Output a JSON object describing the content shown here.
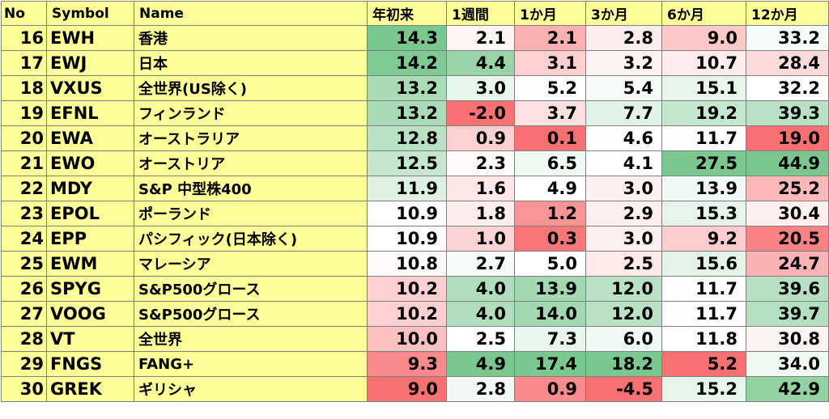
{
  "headers": {
    "no": "No",
    "symbol": "Symbol",
    "name": "Name",
    "ytd": "年初来",
    "w1": "1週間",
    "m1": "1か月",
    "m3": "3か月",
    "m6": "6か月",
    "m12": "12か月"
  },
  "colors": {
    "label_bg": "#ffff99",
    "positive_bg": "#63be7b",
    "negative_bg": "#f8696b",
    "neutral_bg": "#ffffff",
    "grid": "#7f7f7f"
  },
  "rows": [
    {
      "no": "16",
      "symbol": "EWH",
      "name": "香港",
      "ytd": "14.3",
      "w1": "2.1",
      "m1": "2.1",
      "m3": "2.8",
      "m6": "9.0",
      "m12": "33.2"
    },
    {
      "no": "17",
      "symbol": "EWJ",
      "name": "日本",
      "ytd": "14.2",
      "w1": "4.4",
      "m1": "3.1",
      "m3": "3.2",
      "m6": "10.7",
      "m12": "28.4"
    },
    {
      "no": "18",
      "symbol": "VXUS",
      "name": "全世界(US除く)",
      "ytd": "13.2",
      "w1": "3.0",
      "m1": "5.2",
      "m3": "5.4",
      "m6": "15.1",
      "m12": "32.2"
    },
    {
      "no": "19",
      "symbol": "EFNL",
      "name": "フィンランド",
      "ytd": "13.2",
      "w1": "-2.0",
      "m1": "3.7",
      "m3": "7.7",
      "m6": "19.2",
      "m12": "39.3"
    },
    {
      "no": "20",
      "symbol": "EWA",
      "name": "オーストラリア",
      "ytd": "12.8",
      "w1": "0.9",
      "m1": "0.1",
      "m3": "4.6",
      "m6": "11.7",
      "m12": "19.0"
    },
    {
      "no": "21",
      "symbol": "EWO",
      "name": "オーストリア",
      "ytd": "12.5",
      "w1": "2.3",
      "m1": "6.5",
      "m3": "4.1",
      "m6": "27.5",
      "m12": "44.9"
    },
    {
      "no": "22",
      "symbol": "MDY",
      "name": "S&P 中型株400",
      "ytd": "11.9",
      "w1": "1.6",
      "m1": "4.9",
      "m3": "3.0",
      "m6": "13.9",
      "m12": "25.2"
    },
    {
      "no": "23",
      "symbol": "EPOL",
      "name": "ポーランド",
      "ytd": "10.9",
      "w1": "1.8",
      "m1": "1.2",
      "m3": "2.9",
      "m6": "15.3",
      "m12": "30.4"
    },
    {
      "no": "24",
      "symbol": "EPP",
      "name": "パシフィック(日本除く)",
      "ytd": "10.9",
      "w1": "1.0",
      "m1": "0.3",
      "m3": "3.0",
      "m6": "9.2",
      "m12": "20.5"
    },
    {
      "no": "25",
      "symbol": "EWM",
      "name": "マレーシア",
      "ytd": "10.8",
      "w1": "2.7",
      "m1": "5.0",
      "m3": "2.5",
      "m6": "15.6",
      "m12": "24.7"
    },
    {
      "no": "26",
      "symbol": "SPYG",
      "name": "S&P500グロース",
      "ytd": "10.2",
      "w1": "4.0",
      "m1": "13.9",
      "m3": "12.0",
      "m6": "11.7",
      "m12": "39.6"
    },
    {
      "no": "27",
      "symbol": "VOOG",
      "name": "S&P500グロース",
      "ytd": "10.2",
      "w1": "4.0",
      "m1": "14.0",
      "m3": "12.0",
      "m6": "11.7",
      "m12": "39.7"
    },
    {
      "no": "28",
      "symbol": "VT",
      "name": "全世界",
      "ytd": "10.0",
      "w1": "2.5",
      "m1": "7.3",
      "m3": "6.0",
      "m6": "11.8",
      "m12": "30.8"
    },
    {
      "no": "29",
      "symbol": "FNGS",
      "name": "FANG+",
      "ytd": "9.3",
      "w1": "4.9",
      "m1": "17.4",
      "m3": "18.2",
      "m6": "5.2",
      "m12": "34.0"
    },
    {
      "no": "30",
      "symbol": "GREK",
      "name": "ギリシャ",
      "ytd": "9.0",
      "w1": "2.8",
      "m1": "0.9",
      "m3": "-4.5",
      "m6": "15.2",
      "m12": "42.9"
    }
  ]
}
